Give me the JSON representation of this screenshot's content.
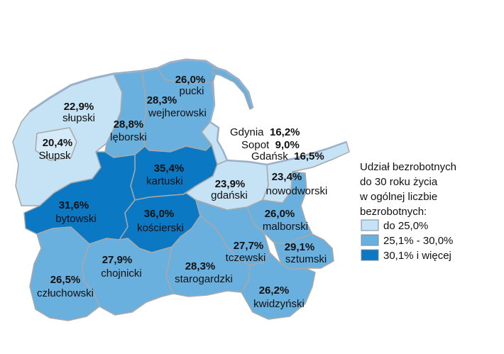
{
  "legend": {
    "title_lines": [
      "Udział bezrobotnych",
      "do 30 roku życia",
      "w ogólnej liczbie",
      "bezrobotnych:"
    ],
    "items": [
      {
        "label": "do 25,0%",
        "color": "#c6e2f5"
      },
      {
        "label": "25,1% - 30,0%",
        "color": "#6ab0df"
      },
      {
        "label": "30,1% i więcej",
        "color": "#0a78c2"
      }
    ]
  },
  "districts": [
    {
      "name": "pucki",
      "value": "26,0%",
      "class": 2
    },
    {
      "name": "słupski",
      "value": "22,9%",
      "class": 1
    },
    {
      "name": "wejherowski",
      "value": "28,3%",
      "class": 2
    },
    {
      "name": "lęborski",
      "value": "28,8%",
      "class": 2
    },
    {
      "name": "Słupsk",
      "value": "20,4%",
      "class": 1
    },
    {
      "name": "kartuski",
      "value": "35,4%",
      "class": 3
    },
    {
      "name": "gdański",
      "value": "23,9%",
      "class": 1
    },
    {
      "name": "nowodworski",
      "value": "23,4%",
      "class": 1
    },
    {
      "name": "bytowski",
      "value": "31,6%",
      "class": 3
    },
    {
      "name": "kościerski",
      "value": "36,0%",
      "class": 3
    },
    {
      "name": "malborski",
      "value": "26,0%",
      "class": 2
    },
    {
      "name": "tczewski",
      "value": "27,7%",
      "class": 2
    },
    {
      "name": "sztumski",
      "value": "29,1%",
      "class": 2
    },
    {
      "name": "chojnicki",
      "value": "27,9%",
      "class": 2
    },
    {
      "name": "starogardzki",
      "value": "28,3%",
      "class": 2
    },
    {
      "name": "człuchowski",
      "value": "26,5%",
      "class": 2
    },
    {
      "name": "kwidzyński",
      "value": "26,2%",
      "class": 2
    }
  ],
  "cities": [
    {
      "name": "Gdynia",
      "value": "16,2%",
      "class": 1
    },
    {
      "name": "Sopot",
      "value": "9,0%",
      "class": 1
    },
    {
      "name": "Gdańsk",
      "value": "16,5%",
      "class": 1
    }
  ],
  "colors": {
    "class1": "#c6e2f5",
    "class2": "#6ab0df",
    "class3": "#0a78c2",
    "border": "#a8a8a8",
    "coast": "#9ab0c8"
  }
}
